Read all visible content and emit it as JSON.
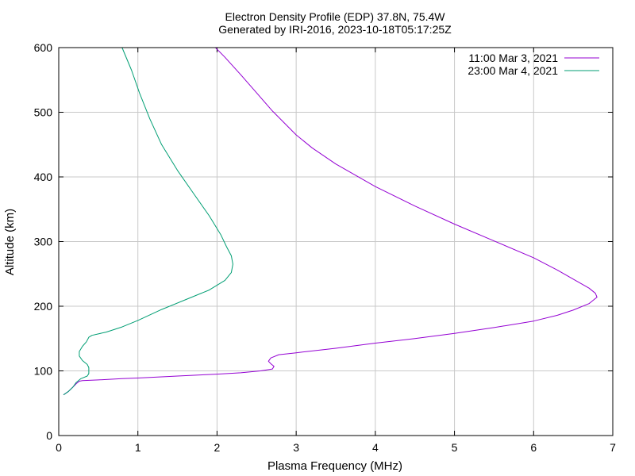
{
  "chart_data": {
    "type": "line",
    "title": "Electron Density Profile (EDP) 37.8N, 75.4W",
    "subtitle": "Generated by IRI-2016, 2023-10-18T05:17:25Z",
    "xlabel": "Plasma Frequency (MHz)",
    "ylabel": "Altitude (km)",
    "xlim": [
      0,
      7
    ],
    "ylim": [
      0,
      600
    ],
    "xticks": [
      0,
      1,
      2,
      3,
      4,
      5,
      6,
      7
    ],
    "yticks": [
      0,
      100,
      200,
      300,
      400,
      500,
      600
    ],
    "grid": true,
    "legend_position": "top-right",
    "series": [
      {
        "name": "11:00 Mar 3, 2021",
        "color": "#9400d3",
        "points": [
          [
            0.06,
            63
          ],
          [
            0.12,
            68
          ],
          [
            0.18,
            75
          ],
          [
            0.22,
            80
          ],
          [
            0.26,
            84
          ],
          [
            0.3,
            85
          ],
          [
            0.5,
            86
          ],
          [
            0.8,
            88
          ],
          [
            1.0,
            89
          ],
          [
            1.5,
            92
          ],
          [
            2.0,
            95
          ],
          [
            2.3,
            97
          ],
          [
            2.55,
            100
          ],
          [
            2.7,
            103
          ],
          [
            2.72,
            107
          ],
          [
            2.68,
            111
          ],
          [
            2.65,
            115
          ],
          [
            2.68,
            120
          ],
          [
            2.78,
            125
          ],
          [
            3.0,
            128
          ],
          [
            3.5,
            135
          ],
          [
            4.0,
            143
          ],
          [
            4.5,
            150
          ],
          [
            5.0,
            158
          ],
          [
            5.5,
            167
          ],
          [
            6.0,
            177
          ],
          [
            6.3,
            186
          ],
          [
            6.5,
            194
          ],
          [
            6.7,
            204
          ],
          [
            6.8,
            214
          ],
          [
            6.78,
            220
          ],
          [
            6.7,
            228
          ],
          [
            6.5,
            242
          ],
          [
            6.3,
            256
          ],
          [
            6.0,
            275
          ],
          [
            5.5,
            301
          ],
          [
            5.0,
            327
          ],
          [
            4.5,
            355
          ],
          [
            4.0,
            385
          ],
          [
            3.5,
            420
          ],
          [
            3.2,
            445
          ],
          [
            3.0,
            465
          ],
          [
            2.7,
            502
          ],
          [
            2.5,
            530
          ],
          [
            2.3,
            558
          ],
          [
            2.1,
            585
          ],
          [
            1.98,
            600
          ]
        ]
      },
      {
        "name": "23:00 Mar 4, 2021",
        "color": "#009e73",
        "points": [
          [
            0.06,
            63
          ],
          [
            0.12,
            68
          ],
          [
            0.18,
            75
          ],
          [
            0.22,
            82
          ],
          [
            0.28,
            88
          ],
          [
            0.36,
            92
          ],
          [
            0.38,
            96
          ],
          [
            0.38,
            105
          ],
          [
            0.36,
            110
          ],
          [
            0.3,
            116
          ],
          [
            0.26,
            123
          ],
          [
            0.26,
            130
          ],
          [
            0.3,
            138
          ],
          [
            0.35,
            145
          ],
          [
            0.38,
            152
          ],
          [
            0.42,
            155
          ],
          [
            0.6,
            160
          ],
          [
            0.8,
            168
          ],
          [
            1.0,
            178
          ],
          [
            1.3,
            195
          ],
          [
            1.6,
            210
          ],
          [
            1.9,
            225
          ],
          [
            2.1,
            240
          ],
          [
            2.18,
            252
          ],
          [
            2.2,
            265
          ],
          [
            2.18,
            278
          ],
          [
            2.12,
            292
          ],
          [
            2.05,
            310
          ],
          [
            1.9,
            340
          ],
          [
            1.7,
            375
          ],
          [
            1.5,
            410
          ],
          [
            1.3,
            450
          ],
          [
            1.15,
            490
          ],
          [
            1.02,
            530
          ],
          [
            0.92,
            565
          ],
          [
            0.8,
            600
          ]
        ]
      }
    ]
  }
}
